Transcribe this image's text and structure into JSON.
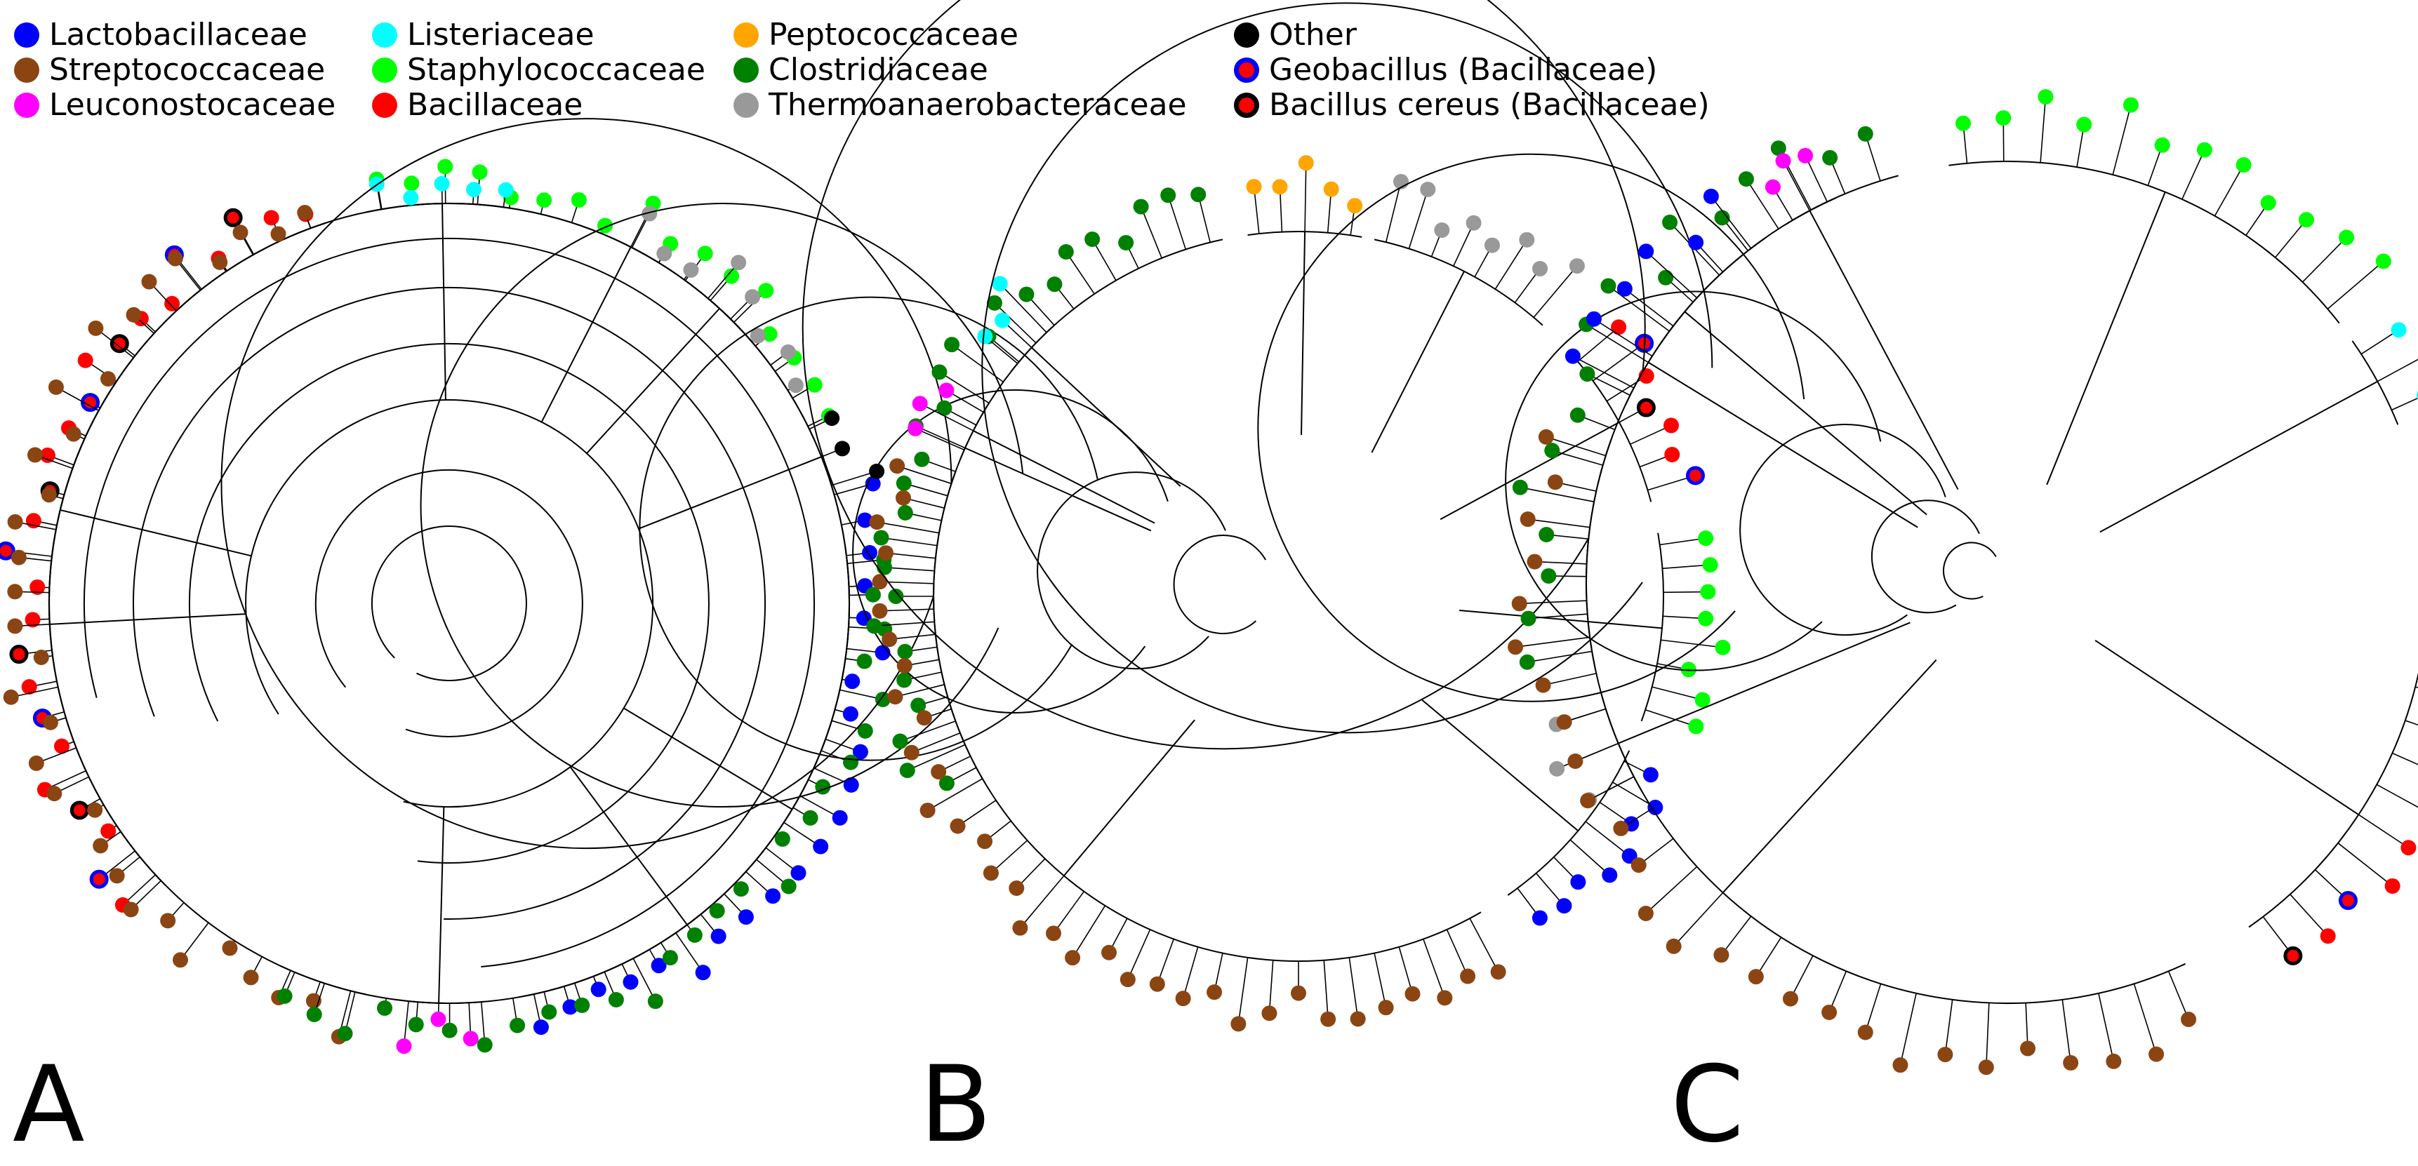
{
  "legend": {
    "items": [
      {
        "label": "Lactobacillaceae",
        "color": "#0000ff"
      },
      {
        "label": "Streptococcaceae",
        "color": "#8b4513"
      },
      {
        "label": "Leuconostocaceae",
        "color": "#ff00ff"
      },
      {
        "label": "Listeriaceae",
        "color": "#00ffff"
      },
      {
        "label": "Staphylococcaceae",
        "color": "#00ff00"
      },
      {
        "label": "Bacillaceae",
        "color": "#ff0000"
      },
      {
        "label": "Peptococcaceae",
        "color": "#ffa500"
      },
      {
        "label": "Clostridiaceae",
        "color": "#008000"
      },
      {
        "label": "Thermoanaerobacteraceae",
        "color": "#999999"
      },
      {
        "label": "Other",
        "color": "#000000"
      },
      {
        "label": "Geobacillus (Bacillaceae)",
        "color": "#ff0000",
        "ring": "#0000ff"
      },
      {
        "label": "Bacillus cereus (Bacillaceae)",
        "color": "#ff0000",
        "ring": "#000000"
      }
    ]
  },
  "panels": [
    {
      "letter": "A",
      "family_arcs": [
        {
          "family": "Bacillaceae",
          "color": "#ff0000",
          "from": 135,
          "to": 252
        },
        {
          "family": "Staphylococcaceae",
          "color": "#00ff00",
          "from": 258,
          "to": 336
        },
        {
          "family": "Lactobacillaceae",
          "color": "#0000ff",
          "from": 342,
          "to": 440
        },
        {
          "family": "Leuconostocaceae",
          "color": "#ff00ff",
          "from": 445,
          "to": 458
        },
        {
          "family": "Streptococcaceae",
          "color": "#8b4513",
          "from": 462,
          "to": 612
        },
        {
          "family": "Listeriaceae",
          "color": "#00ffff",
          "from": 618,
          "to": 640
        },
        {
          "family": "Thermoanaerobacteraceae",
          "color": "#999999",
          "from": 655,
          "to": 690
        },
        {
          "family": "Other",
          "color": "#000000",
          "from": 692,
          "to": 705
        },
        {
          "family": "Clostridiaceae",
          "color": "#008000",
          "from": 712,
          "to": 835
        }
      ]
    },
    {
      "letter": "B",
      "family_arcs": [
        {
          "family": "Clostridiaceae",
          "color": "#008000",
          "from": 150,
          "to": 258
        },
        {
          "family": "Peptococcaceae",
          "color": "#ffa500",
          "from": 262,
          "to": 280
        },
        {
          "family": "Thermoanaerobacteraceae",
          "color": "#999999",
          "from": 282,
          "to": 312
        },
        {
          "family": "Bacillaceae",
          "color": "#ff0000",
          "from": 318,
          "to": 345
        },
        {
          "family": "Staphylococcaceae",
          "color": "#00ff00",
          "from": 350,
          "to": 380
        },
        {
          "family": "Lactobacillaceae",
          "color": "#0000ff",
          "from": 385,
          "to": 415
        },
        {
          "family": "Streptococcaceae",
          "color": "#8b4513",
          "from": 420,
          "to": 560
        },
        {
          "family": "Leuconostocaceae",
          "color": "#ff00ff",
          "from": 562,
          "to": 572
        },
        {
          "family": "Listeriaceae",
          "color": "#00ffff",
          "from": 578,
          "to": 588
        }
      ]
    },
    {
      "letter": "C",
      "family_arcs": [
        {
          "family": "Thermoanaerobacteraceae",
          "color": "#999999",
          "from": 150,
          "to": 165
        },
        {
          "family": "Clostridiaceae",
          "color": "#008000",
          "from": 168,
          "to": 255
        },
        {
          "family": "Staphylococcaceae",
          "color": "#00ff00",
          "from": 262,
          "to": 322
        },
        {
          "family": "Listeriaceae",
          "color": "#00ffff",
          "from": 325,
          "to": 338
        },
        {
          "family": "Bacillaceae",
          "color": "#ff0000",
          "from": 372,
          "to": 415
        },
        {
          "family": "Streptococcaceae",
          "color": "#8b4513",
          "from": 425,
          "to": 560
        },
        {
          "family": "Lactobacillaceae",
          "color": "#0000ff",
          "from": 565,
          "to": 595
        },
        {
          "family": "Leuconostocaceae",
          "color": "#ff00ff",
          "from": 598,
          "to": 606
        }
      ]
    }
  ]
}
